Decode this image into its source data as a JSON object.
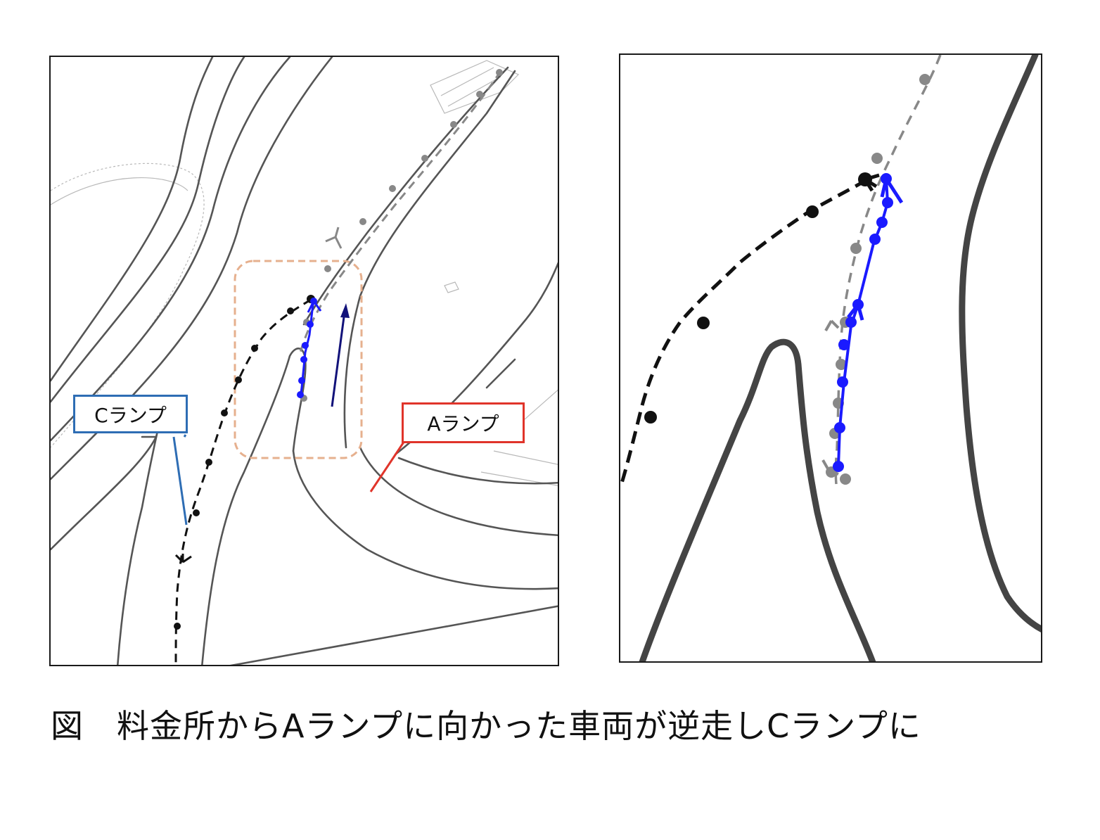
{
  "figure": {
    "caption": "図　料金所からAランプに向かった車両が逆走しCランプに",
    "callouts": {
      "c_ramp": "Cランプ",
      "a_ramp": "Aランプ"
    },
    "colors": {
      "road_line": "#555555",
      "road_line_light": "#aaaaaa",
      "c_ramp_callout": "#2e6db4",
      "a_ramp_callout": "#e0342a",
      "highlight_box": "#e6b08e",
      "wrong_way_track": "#111111",
      "planned_track": "#888888",
      "reverse_track": "#1a1aff",
      "direction_arrow": "#12127a"
    },
    "icons": {
      "vehicle_marker": "vehicle-marker-icon",
      "direction_arrow": "arrow-up-icon"
    }
  }
}
